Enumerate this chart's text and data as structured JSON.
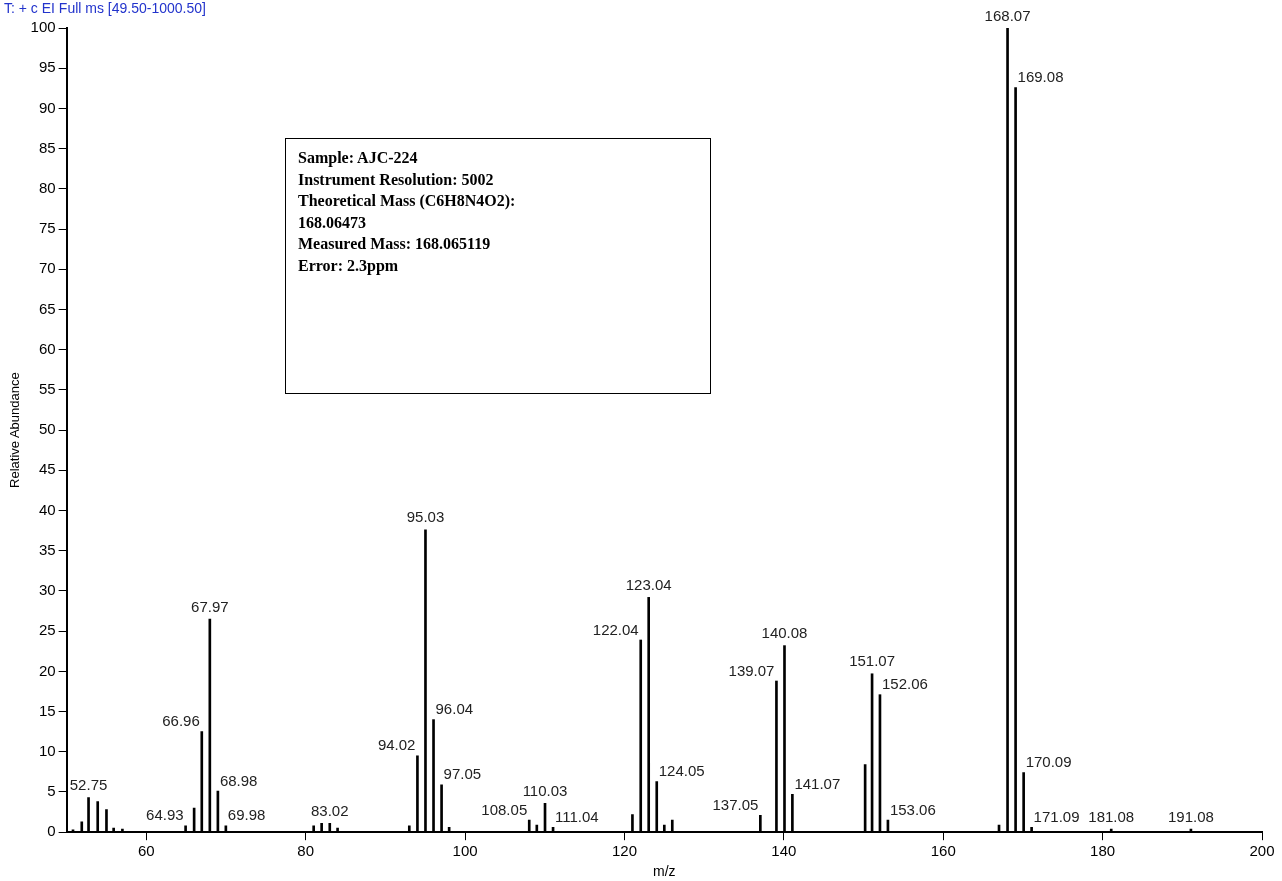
{
  "chart_data": {
    "type": "bar",
    "title": "T: + c EI Full ms [49.50-1000.50]",
    "xlabel": "m/z",
    "ylabel": "Relative Abundance",
    "x": [
      50.8,
      51.9,
      52.75,
      53.9,
      55,
      55.9,
      57,
      64.93,
      66,
      66.96,
      67.97,
      68.98,
      69.98,
      81,
      82,
      83.02,
      84,
      93,
      94.02,
      95.03,
      96.04,
      97.05,
      98,
      108.05,
      109,
      110.03,
      111.04,
      121,
      122.04,
      123.04,
      124.05,
      125,
      126,
      137.05,
      139.07,
      140.08,
      141.07,
      150.2,
      151.07,
      152.06,
      153.06,
      167,
      168.07,
      169.08,
      170.09,
      171.09,
      181.08,
      191.08
    ],
    "values": [
      0.3,
      1.3,
      4.3,
      3.8,
      2.8,
      0.5,
      0.4,
      0.8,
      3,
      12.5,
      26.5,
      5.1,
      0.8,
      0.8,
      1.1,
      1.1,
      0.5,
      0.8,
      9.5,
      37.6,
      14,
      5.9,
      0.6,
      1.5,
      0.9,
      3.6,
      0.6,
      2.2,
      23.9,
      29.2,
      6.3,
      0.9,
      1.5,
      2.1,
      18.8,
      23.2,
      4.7,
      8.4,
      19.7,
      17.1,
      1.5,
      0.9,
      100,
      92.6,
      7.4,
      0.6,
      0.4,
      0.4
    ],
    "color": "#000000",
    "xlim": [
      50,
      200
    ],
    "xticks": [
      60,
      80,
      100,
      120,
      140,
      160,
      180,
      200
    ],
    "ylim": [
      0,
      100
    ],
    "yticks": [
      0,
      5,
      10,
      15,
      20,
      25,
      30,
      35,
      40,
      45,
      50,
      55,
      60,
      65,
      70,
      75,
      80,
      85,
      90,
      95,
      100
    ],
    "grid": false,
    "legend": false,
    "annotations": [
      {
        "text": "52.75",
        "x": 52.75,
        "y": 4.3
      },
      {
        "text": "64.93",
        "x": 64.93,
        "y": 0.8
      },
      {
        "text": "66.96",
        "x": 66.96,
        "y": 12.5
      },
      {
        "text": "67.97",
        "x": 67.97,
        "y": 26.5
      },
      {
        "text": "68.98",
        "x": 68.98,
        "y": 5.1
      },
      {
        "text": "69.98",
        "x": 69.98,
        "y": 0.8
      },
      {
        "text": "83.02",
        "x": 83.02,
        "y": 1.1
      },
      {
        "text": "94.02",
        "x": 94.02,
        "y": 9.5
      },
      {
        "text": "95.03",
        "x": 95.03,
        "y": 37.6
      },
      {
        "text": "96.04",
        "x": 96.04,
        "y": 14
      },
      {
        "text": "97.05",
        "x": 97.05,
        "y": 5.9
      },
      {
        "text": "108.05",
        "x": 108.05,
        "y": 1.5
      },
      {
        "text": "110.03",
        "x": 110.03,
        "y": 3.6
      },
      {
        "text": "111.04",
        "x": 111.04,
        "y": 0.6
      },
      {
        "text": "122.04",
        "x": 122.04,
        "y": 23.9
      },
      {
        "text": "123.04",
        "x": 123.04,
        "y": 29.2
      },
      {
        "text": "124.05",
        "x": 124.05,
        "y": 6.3
      },
      {
        "text": "137.05",
        "x": 137.05,
        "y": 2.1
      },
      {
        "text": "139.07",
        "x": 139.07,
        "y": 18.8
      },
      {
        "text": "140.08",
        "x": 140.08,
        "y": 23.2
      },
      {
        "text": "141.07",
        "x": 141.07,
        "y": 4.7
      },
      {
        "text": "151.07",
        "x": 151.07,
        "y": 19.7
      },
      {
        "text": "152.06",
        "x": 152.06,
        "y": 17.1
      },
      {
        "text": "153.06",
        "x": 153.06,
        "y": 1.5
      },
      {
        "text": "168.07",
        "x": 168.07,
        "y": 100
      },
      {
        "text": "169.08",
        "x": 169.08,
        "y": 92.6
      },
      {
        "text": "170.09",
        "x": 170.09,
        "y": 7.4
      },
      {
        "text": "171.09",
        "x": 171.09,
        "y": 0.6
      },
      {
        "text": "181.08",
        "x": 181.08,
        "y": 0.4
      },
      {
        "text": "191.08",
        "x": 191.08,
        "y": 0.4
      },
      "Sample: AJC-224",
      "Instrument Resolution: 5002",
      "Theoretical Mass (C6H8N4O2):",
      "168.06473",
      "Measured Mass: 168.065119",
      "Error: 2.3ppm"
    ]
  }
}
